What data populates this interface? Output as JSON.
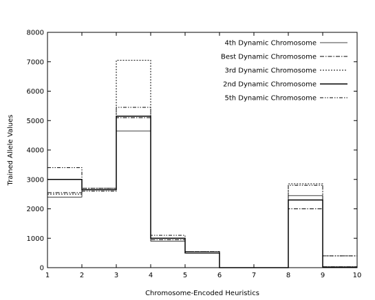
{
  "chart_data": {
    "type": "line",
    "step": true,
    "xlabel": "Chromosome-Encoded Heuristics",
    "ylabel": "Trained Allele Values",
    "xlim": [
      1,
      10
    ],
    "ylim": [
      0,
      8000
    ],
    "x_ticks": [
      1,
      2,
      3,
      4,
      5,
      6,
      7,
      8,
      9,
      10
    ],
    "y_ticks": [
      0,
      1000,
      2000,
      3000,
      4000,
      5000,
      6000,
      7000,
      8000
    ],
    "grid": false,
    "legend_position": "top-right",
    "x": [
      1,
      2,
      3,
      4,
      5,
      6,
      7,
      8,
      9
    ],
    "series": [
      {
        "name": "4th Dynamic Chromosome",
        "dash": "solid",
        "values": [
          2400,
          2650,
          4650,
          900,
          500,
          0,
          0,
          2450,
          0
        ]
      },
      {
        "name": "Best Dynamic Chromosome",
        "dash": "dash-dot",
        "values": [
          2550,
          2700,
          5100,
          950,
          550,
          0,
          0,
          2000,
          30
        ]
      },
      {
        "name": "3rd Dynamic Chromosome",
        "dash": "dotted",
        "values": [
          2500,
          2700,
          7050,
          1000,
          550,
          0,
          0,
          2850,
          400
        ]
      },
      {
        "name": "2nd Dynamic Chromosome",
        "dash": "solid-heavy",
        "values": [
          3000,
          2650,
          5150,
          1000,
          500,
          0,
          0,
          2300,
          20
        ]
      },
      {
        "name": "5th Dynamic Chromosome",
        "dash": "dash-dot-dot",
        "values": [
          3400,
          2600,
          5450,
          1100,
          550,
          0,
          0,
          2800,
          400
        ]
      }
    ]
  }
}
